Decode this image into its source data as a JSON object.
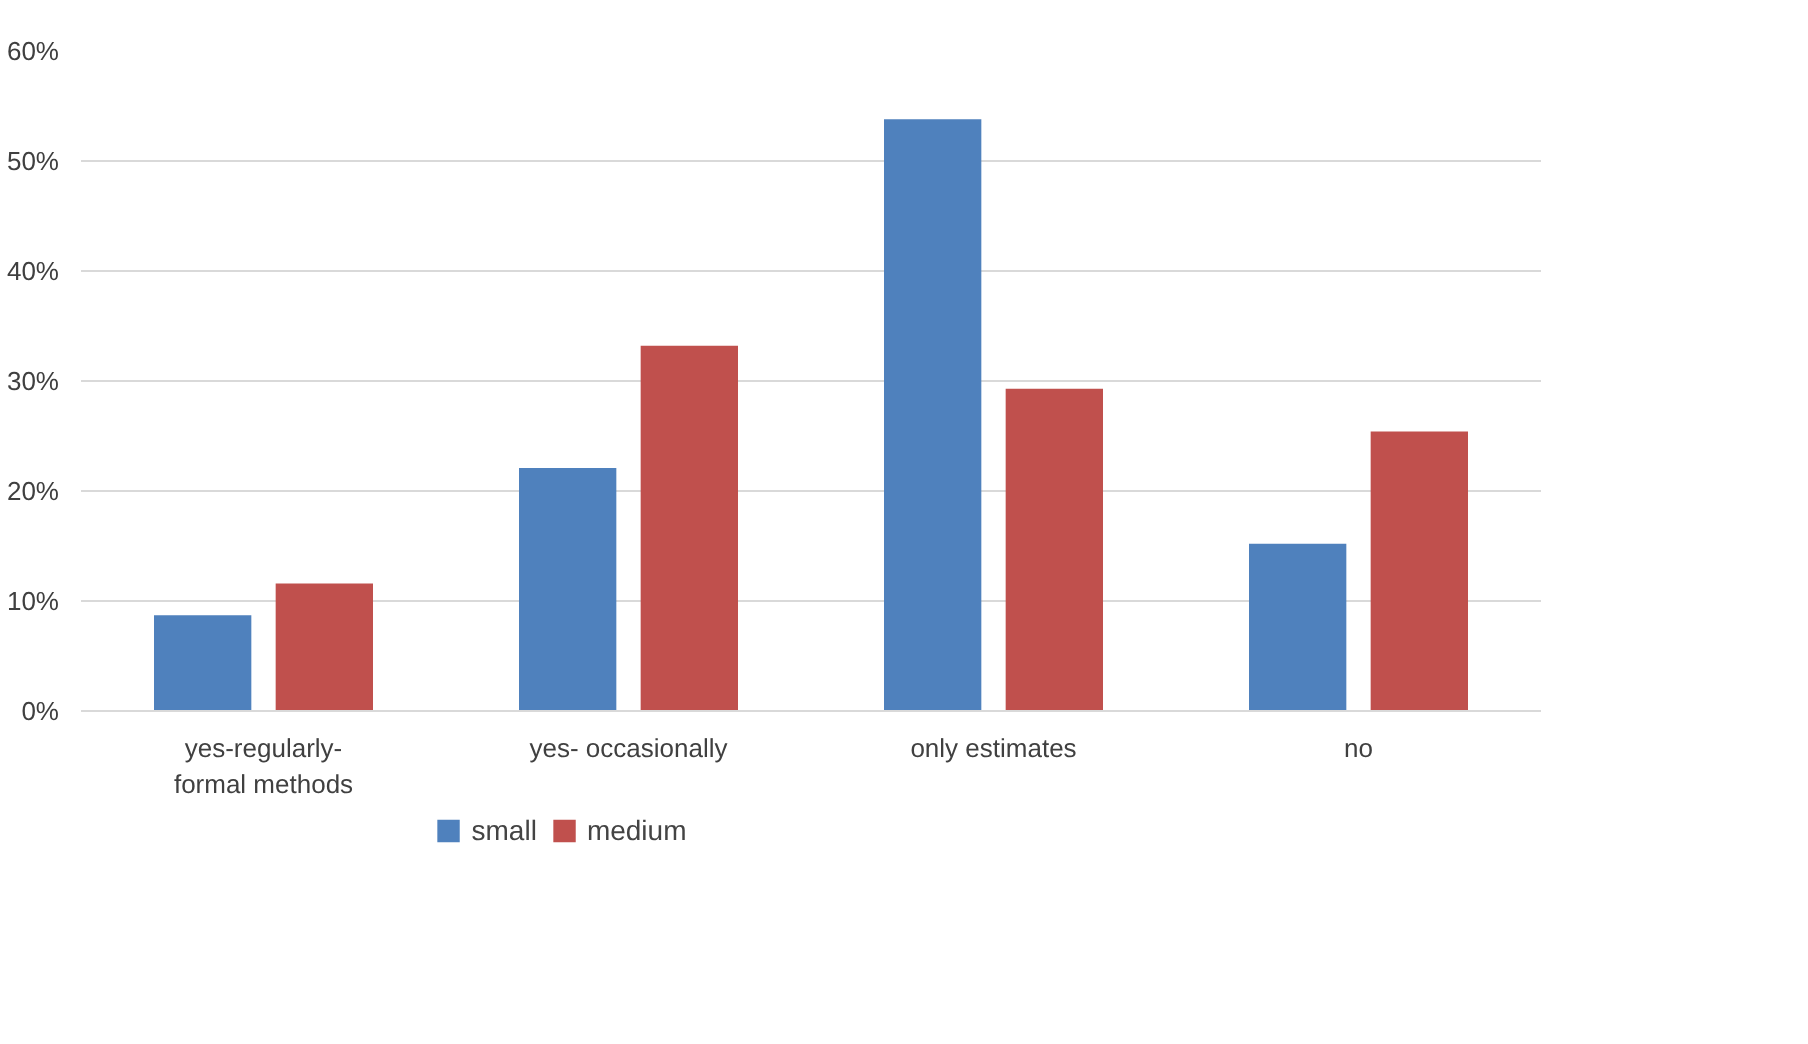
{
  "chart_data": {
    "type": "bar",
    "categories": [
      "yes-regularly-\nformal methods",
      "yes- occasionally",
      "only estimates",
      "no"
    ],
    "series": [
      {
        "name": "small",
        "color": "#4f81bd",
        "values": [
          8.7,
          22.1,
          53.8,
          15.2
        ]
      },
      {
        "name": "medium",
        "color": "#c0504d",
        "values": [
          11.6,
          33.2,
          29.3,
          25.4
        ]
      }
    ],
    "ylim": [
      0,
      60
    ],
    "yticks": [
      {
        "value": 0,
        "label": "0%"
      },
      {
        "value": 10,
        "label": "10%"
      },
      {
        "value": 20,
        "label": "20%"
      },
      {
        "value": 30,
        "label": "30%"
      },
      {
        "value": 40,
        "label": "40%"
      },
      {
        "value": 50,
        "label": "50%"
      },
      {
        "value": 60,
        "label": "60%"
      }
    ],
    "grid": "y",
    "legend": "bottom"
  }
}
